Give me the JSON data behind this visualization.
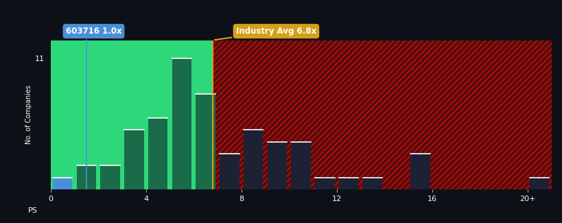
{
  "company_label": "603716 1.0x",
  "industry_label": "Industry Avg 6.8x",
  "company_ps": 1.0,
  "industry_avg_ps": 6.8,
  "xlabel": "PS",
  "ylabel": "No. of Companies",
  "ytick_label": "11",
  "ylim": [
    0,
    12.5
  ],
  "xlim": [
    0,
    21.0
  ],
  "background_color": "#0d1117",
  "green_bg_color": "#2dd87a",
  "red_bg_color": "#5a0a0a",
  "hatch_color": "#cc1111",
  "bar_green_color": "#1a6b4a",
  "bar_dark_color": "#1c2233",
  "bar_blue_color": "#4a90d9",
  "company_line_color": "#4a90d9",
  "industry_line_color": "#d4a017",
  "bins": [
    0,
    1,
    2,
    3,
    4,
    5,
    6,
    7,
    8,
    9,
    10,
    11,
    12,
    13,
    14,
    15,
    16,
    17,
    18,
    19,
    20
  ],
  "bar_values": [
    1,
    2,
    2,
    5,
    6,
    11,
    8,
    3,
    5,
    4,
    4,
    1,
    1,
    1,
    0,
    3,
    0,
    0,
    0,
    0,
    1
  ],
  "xtick_positions": [
    0,
    4,
    8,
    12,
    16,
    20
  ],
  "xtick_labels": [
    "0",
    "4",
    "8",
    "12",
    "16",
    "20+"
  ],
  "bar_width": 0.82
}
